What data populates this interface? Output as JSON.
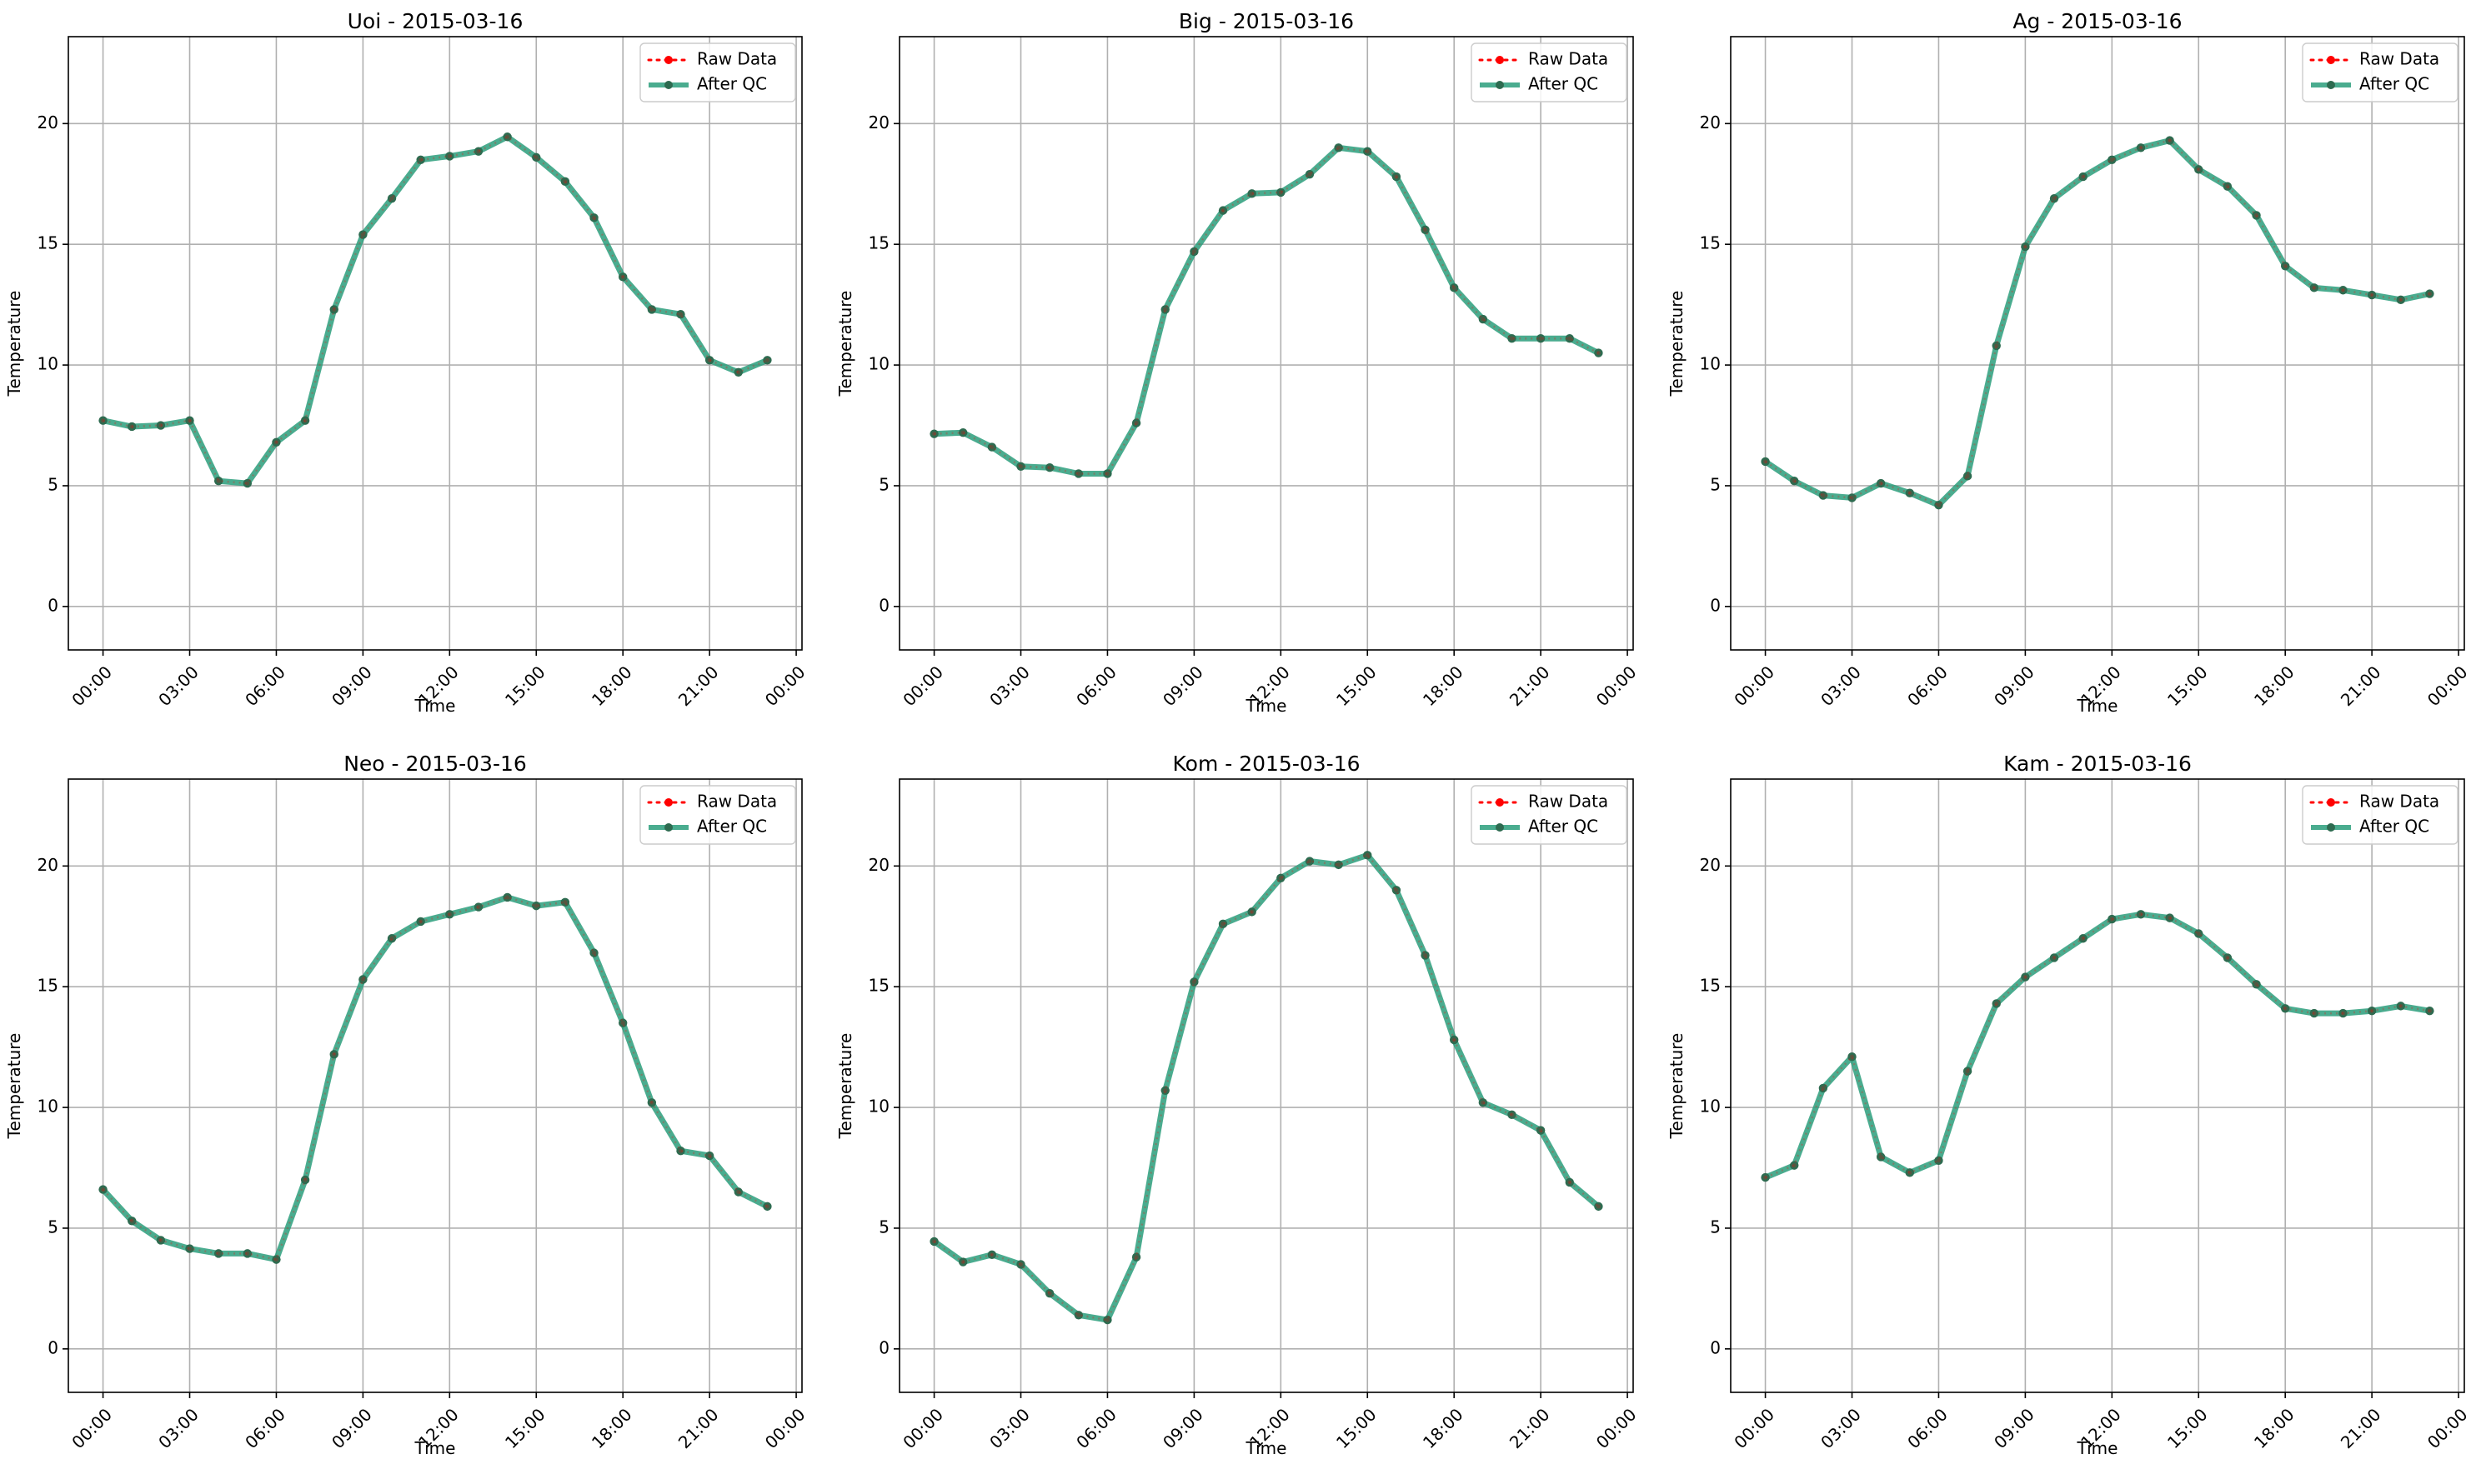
{
  "figure": {
    "legend_position": "upper right",
    "grid": true,
    "colors": {
      "raw": "#ff0000",
      "qc": "#2a9d7b",
      "qc_marker": "#2e6b50",
      "grid": "#b0b0b0",
      "axis": "#000000"
    }
  },
  "chart_data": [
    {
      "type": "line",
      "title": "Uoi - 2015-03-16",
      "xlabel": "Time",
      "ylabel": "Temperature",
      "x_ticks": [
        "00:00",
        "03:00",
        "06:00",
        "09:00",
        "12:00",
        "15:00",
        "18:00",
        "21:00",
        "00:00"
      ],
      "y_ticks": [
        "0",
        "5",
        "10",
        "15",
        "20"
      ],
      "xlim": [
        -1.2,
        24.2
      ],
      "ylim": [
        -1.8,
        23.6
      ],
      "x_hours": [
        0,
        1,
        2,
        3,
        4,
        5,
        6,
        7,
        8,
        9,
        10,
        11,
        12,
        13,
        14,
        15,
        16,
        17,
        18,
        19,
        20,
        21,
        22,
        23
      ],
      "series": [
        {
          "name": "Raw Data",
          "values": [
            7.7,
            7.45,
            7.5,
            7.7,
            5.2,
            5.1,
            6.8,
            7.7,
            12.3,
            15.4,
            16.9,
            18.5,
            18.65,
            18.85,
            19.45,
            18.6,
            17.6,
            16.1,
            13.65,
            12.3,
            12.1,
            10.2,
            9.7,
            10.2
          ]
        },
        {
          "name": "After QC",
          "values": [
            7.7,
            7.45,
            7.5,
            7.7,
            5.2,
            5.1,
            6.8,
            7.7,
            12.3,
            15.4,
            16.9,
            18.5,
            18.65,
            18.85,
            19.45,
            18.6,
            17.6,
            16.1,
            13.65,
            12.3,
            12.1,
            10.2,
            9.7,
            10.2
          ]
        }
      ]
    },
    {
      "type": "line",
      "title": "Big - 2015-03-16",
      "xlabel": "Time",
      "ylabel": "Temperature",
      "x_ticks": [
        "00:00",
        "03:00",
        "06:00",
        "09:00",
        "12:00",
        "15:00",
        "18:00",
        "21:00",
        "00:00"
      ],
      "y_ticks": [
        "0",
        "5",
        "10",
        "15",
        "20"
      ],
      "xlim": [
        -1.2,
        24.2
      ],
      "ylim": [
        -1.8,
        23.6
      ],
      "x_hours": [
        0,
        1,
        2,
        3,
        4,
        5,
        6,
        7,
        8,
        9,
        10,
        11,
        12,
        13,
        14,
        15,
        16,
        17,
        18,
        19,
        20,
        21,
        22,
        23
      ],
      "series": [
        {
          "name": "Raw Data",
          "values": [
            7.15,
            7.2,
            6.6,
            5.8,
            5.75,
            5.5,
            5.5,
            7.6,
            12.3,
            14.7,
            16.4,
            17.1,
            17.15,
            17.9,
            19.0,
            18.85,
            17.8,
            15.6,
            13.2,
            11.9,
            11.1,
            11.1,
            11.1,
            10.5
          ]
        },
        {
          "name": "After QC",
          "values": [
            7.15,
            7.2,
            6.6,
            5.8,
            5.75,
            5.5,
            5.5,
            7.6,
            12.3,
            14.7,
            16.4,
            17.1,
            17.15,
            17.9,
            19.0,
            18.85,
            17.8,
            15.6,
            13.2,
            11.9,
            11.1,
            11.1,
            11.1,
            10.5
          ]
        }
      ]
    },
    {
      "type": "line",
      "title": "Ag - 2015-03-16",
      "xlabel": "Time",
      "ylabel": "Temperature",
      "x_ticks": [
        "00:00",
        "03:00",
        "06:00",
        "09:00",
        "12:00",
        "15:00",
        "18:00",
        "21:00",
        "00:00"
      ],
      "y_ticks": [
        "0",
        "5",
        "10",
        "15",
        "20"
      ],
      "xlim": [
        -1.2,
        24.2
      ],
      "ylim": [
        -1.8,
        23.6
      ],
      "x_hours": [
        0,
        1,
        2,
        3,
        4,
        5,
        6,
        7,
        8,
        9,
        10,
        11,
        12,
        13,
        14,
        15,
        16,
        17,
        18,
        19,
        20,
        21,
        22,
        23
      ],
      "series": [
        {
          "name": "Raw Data",
          "values": [
            6.0,
            5.2,
            4.6,
            4.5,
            5.1,
            4.7,
            4.2,
            5.4,
            10.8,
            14.9,
            16.9,
            17.8,
            18.5,
            19.0,
            19.3,
            18.1,
            17.4,
            16.2,
            14.1,
            13.2,
            13.1,
            12.9,
            12.7,
            12.95
          ]
        },
        {
          "name": "After QC",
          "values": [
            6.0,
            5.2,
            4.6,
            4.5,
            5.1,
            4.7,
            4.2,
            5.4,
            10.8,
            14.9,
            16.9,
            17.8,
            18.5,
            19.0,
            19.3,
            18.1,
            17.4,
            16.2,
            14.1,
            13.2,
            13.1,
            12.9,
            12.7,
            12.95
          ]
        }
      ]
    },
    {
      "type": "line",
      "title": "Neo - 2015-03-16",
      "xlabel": "Time",
      "ylabel": "Temperature",
      "x_ticks": [
        "00:00",
        "03:00",
        "06:00",
        "09:00",
        "12:00",
        "15:00",
        "18:00",
        "21:00",
        "00:00"
      ],
      "y_ticks": [
        "0",
        "5",
        "10",
        "15",
        "20"
      ],
      "xlim": [
        -1.2,
        24.2
      ],
      "ylim": [
        -1.8,
        23.6
      ],
      "x_hours": [
        0,
        1,
        2,
        3,
        4,
        5,
        6,
        7,
        8,
        9,
        10,
        11,
        12,
        13,
        14,
        15,
        16,
        17,
        18,
        19,
        20,
        21,
        22,
        23
      ],
      "series": [
        {
          "name": "Raw Data",
          "values": [
            6.6,
            5.3,
            4.5,
            4.15,
            3.95,
            3.95,
            3.7,
            7.0,
            12.2,
            15.3,
            17.0,
            17.7,
            18.0,
            18.3,
            18.7,
            18.35,
            18.5,
            16.4,
            13.5,
            10.2,
            8.2,
            8.0,
            6.5,
            5.9
          ]
        },
        {
          "name": "After QC",
          "values": [
            6.6,
            5.3,
            4.5,
            4.15,
            3.95,
            3.95,
            3.7,
            7.0,
            12.2,
            15.3,
            17.0,
            17.7,
            18.0,
            18.3,
            18.7,
            18.35,
            18.5,
            16.4,
            13.5,
            10.2,
            8.2,
            8.0,
            6.5,
            5.9
          ]
        }
      ]
    },
    {
      "type": "line",
      "title": "Kom - 2015-03-16",
      "xlabel": "Time",
      "ylabel": "Temperature",
      "x_ticks": [
        "00:00",
        "03:00",
        "06:00",
        "09:00",
        "12:00",
        "15:00",
        "18:00",
        "21:00",
        "00:00"
      ],
      "y_ticks": [
        "0",
        "5",
        "10",
        "15",
        "20"
      ],
      "xlim": [
        -1.2,
        24.2
      ],
      "ylim": [
        -1.8,
        23.6
      ],
      "x_hours": [
        0,
        1,
        2,
        3,
        4,
        5,
        6,
        7,
        8,
        9,
        10,
        11,
        12,
        13,
        14,
        15,
        16,
        17,
        18,
        19,
        20,
        21,
        22,
        23
      ],
      "series": [
        {
          "name": "Raw Data",
          "values": [
            4.45,
            3.6,
            3.9,
            3.5,
            2.3,
            1.4,
            1.2,
            3.8,
            10.7,
            15.2,
            17.6,
            18.1,
            19.5,
            20.2,
            20.05,
            20.45,
            19.0,
            16.3,
            12.8,
            10.2,
            9.7,
            9.05,
            6.9,
            5.9
          ]
        },
        {
          "name": "After QC",
          "values": [
            4.45,
            3.6,
            3.9,
            3.5,
            2.3,
            1.4,
            1.2,
            3.8,
            10.7,
            15.2,
            17.6,
            18.1,
            19.5,
            20.2,
            20.05,
            20.45,
            19.0,
            16.3,
            12.8,
            10.2,
            9.7,
            9.05,
            6.9,
            5.9
          ]
        }
      ]
    },
    {
      "type": "line",
      "title": "Kam - 2015-03-16",
      "xlabel": "Time",
      "ylabel": "Temperature",
      "x_ticks": [
        "00:00",
        "03:00",
        "06:00",
        "09:00",
        "12:00",
        "15:00",
        "18:00",
        "21:00",
        "00:00"
      ],
      "y_ticks": [
        "0",
        "5",
        "10",
        "15",
        "20"
      ],
      "xlim": [
        -1.2,
        24.2
      ],
      "ylim": [
        -1.8,
        23.6
      ],
      "x_hours": [
        0,
        1,
        2,
        3,
        4,
        5,
        6,
        7,
        8,
        9,
        10,
        11,
        12,
        13,
        14,
        15,
        16,
        17,
        18,
        19,
        20,
        21,
        22,
        23
      ],
      "series": [
        {
          "name": "Raw Data",
          "values": [
            7.1,
            7.6,
            10.8,
            12.1,
            7.95,
            7.3,
            7.8,
            11.5,
            14.3,
            15.4,
            16.2,
            17.0,
            17.8,
            18.0,
            17.85,
            17.2,
            16.2,
            15.1,
            14.1,
            13.9,
            13.9,
            14.0,
            14.2,
            14.0
          ]
        },
        {
          "name": "After QC",
          "values": [
            7.1,
            7.6,
            10.8,
            12.1,
            7.95,
            7.3,
            7.8,
            11.5,
            14.3,
            15.4,
            16.2,
            17.0,
            17.8,
            18.0,
            17.85,
            17.2,
            16.2,
            15.1,
            14.1,
            13.9,
            13.9,
            14.0,
            14.2,
            14.0
          ]
        }
      ]
    }
  ]
}
